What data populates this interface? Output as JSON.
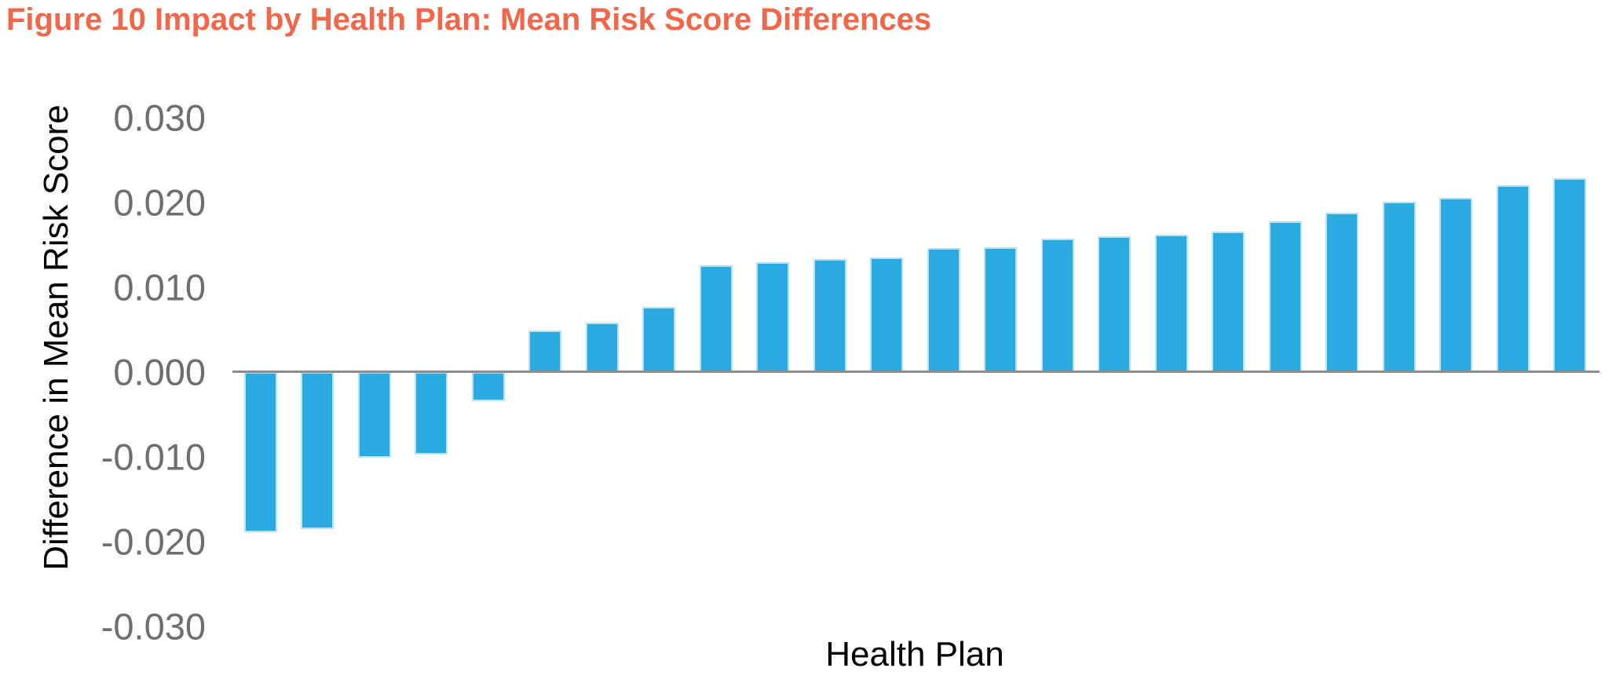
{
  "title": "Figure 10 Impact by Health Plan: Mean Risk Score Differences",
  "colors": {
    "title": "#F26649",
    "bar": "#29ABE2",
    "bar_edge": "#B5E2F8",
    "zero_line": "#8C8C8C",
    "tick_label": "#6D6E71",
    "axis_text": "#000000"
  },
  "chart_data": {
    "type": "bar",
    "title": "Figure 10 Impact by Health Plan: Mean Risk Score Differences",
    "xlabel": "Health Plan",
    "ylabel": "Difference in Mean Risk Score",
    "ylim": [
      -0.03,
      0.03
    ],
    "y_ticks": [
      0.03,
      0.02,
      0.01,
      0.0,
      -0.01,
      -0.02,
      -0.03
    ],
    "y_tick_labels": [
      "0.030",
      "0.020",
      "0.010",
      "0.000",
      "-0.010",
      "-0.020",
      "-0.030"
    ],
    "x_tick_labels": [],
    "grid": false,
    "legend": false,
    "bar_count": 24,
    "sort": "ascending",
    "values": [
      -0.0189,
      -0.0185,
      -0.0101,
      -0.0097,
      -0.0034,
      0.0049,
      0.0058,
      0.0077,
      0.0126,
      0.013,
      0.0133,
      0.0135,
      0.0146,
      0.0147,
      0.0157,
      0.016,
      0.0162,
      0.0166,
      0.0178,
      0.0188,
      0.0201,
      0.0206,
      0.022,
      0.0229
    ]
  }
}
